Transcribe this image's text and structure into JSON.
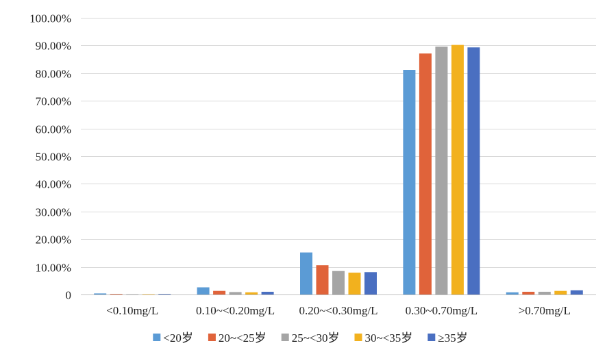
{
  "chart_data": {
    "type": "bar",
    "title": "",
    "xlabel": "",
    "ylabel": "",
    "ylim": [
      0,
      100
    ],
    "y_ticks": [
      0,
      10,
      20,
      30,
      40,
      50,
      60,
      70,
      80,
      90,
      100
    ],
    "y_tick_labels": [
      "0",
      "10.00%",
      "20.00%",
      "30.00%",
      "40.00%",
      "50.00%",
      "60.00%",
      "70.00%",
      "80.00%",
      "90.00%",
      "100.00%"
    ],
    "grid": "horizontal",
    "legend_position": "bottom",
    "categories": [
      "<0.10mg/L",
      "0.10~<0.20mg/L",
      "0.20~<0.30mg/L",
      "0.30~0.70mg/L",
      ">0.70mg/L"
    ],
    "series": [
      {
        "name": "<20岁",
        "color": "#5B9BD5",
        "values": [
          0.4,
          2.6,
          15.2,
          81.2,
          0.8
        ]
      },
      {
        "name": "20~<25岁",
        "color": "#E0633A",
        "values": [
          0.2,
          1.3,
          10.6,
          87.1,
          1.0
        ]
      },
      {
        "name": "25~<30岁",
        "color": "#A5A5A5",
        "values": [
          0.1,
          0.9,
          8.5,
          89.6,
          1.0
        ]
      },
      {
        "name": "30~<35岁",
        "color": "#F2B11E",
        "values": [
          0.1,
          0.8,
          7.9,
          90.2,
          1.3
        ]
      },
      {
        "name": "≥35岁",
        "color": "#4A6FC1",
        "values": [
          0.2,
          1.0,
          8.1,
          89.3,
          1.5
        ]
      }
    ]
  }
}
